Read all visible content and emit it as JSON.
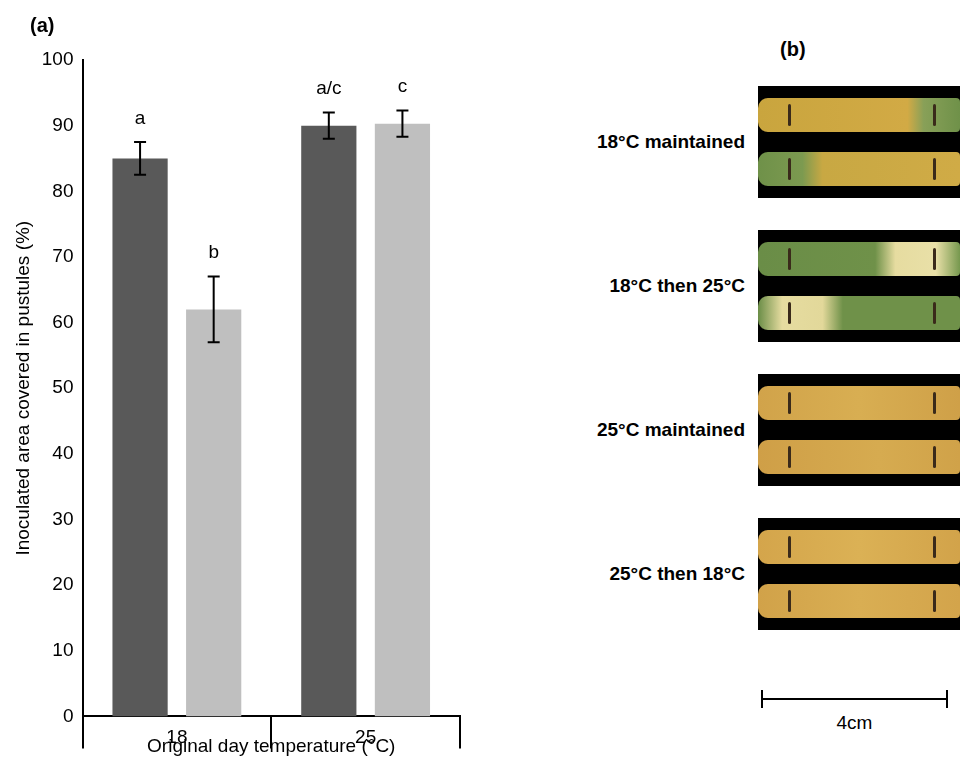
{
  "chart_data": {
    "type": "bar",
    "title": "(a)",
    "categories": [
      "18",
      "25"
    ],
    "x_label": "Original day temperature (°C)",
    "y_label": "Inoculated area covered in pustules (%)",
    "ylim": [
      0,
      100
    ],
    "yticks": [
      0,
      10,
      20,
      30,
      40,
      50,
      60,
      70,
      80,
      90,
      100
    ],
    "grid": false,
    "series": [
      {
        "color": "#595959",
        "values": [
          85,
          90
        ],
        "errors": [
          2.5,
          2
        ],
        "letters": [
          "a",
          "a/c"
        ]
      },
      {
        "color": "#bfbfbf",
        "values": [
          62,
          90.3
        ],
        "errors": [
          5,
          2
        ],
        "letters": [
          "b",
          "c"
        ]
      }
    ]
  },
  "panel_b": {
    "label": "(b)",
    "rows": [
      "18°C maintained",
      "18°C then 25°C",
      "25°C maintained",
      "25°C then 18°C"
    ],
    "scale_bar": "4cm"
  }
}
